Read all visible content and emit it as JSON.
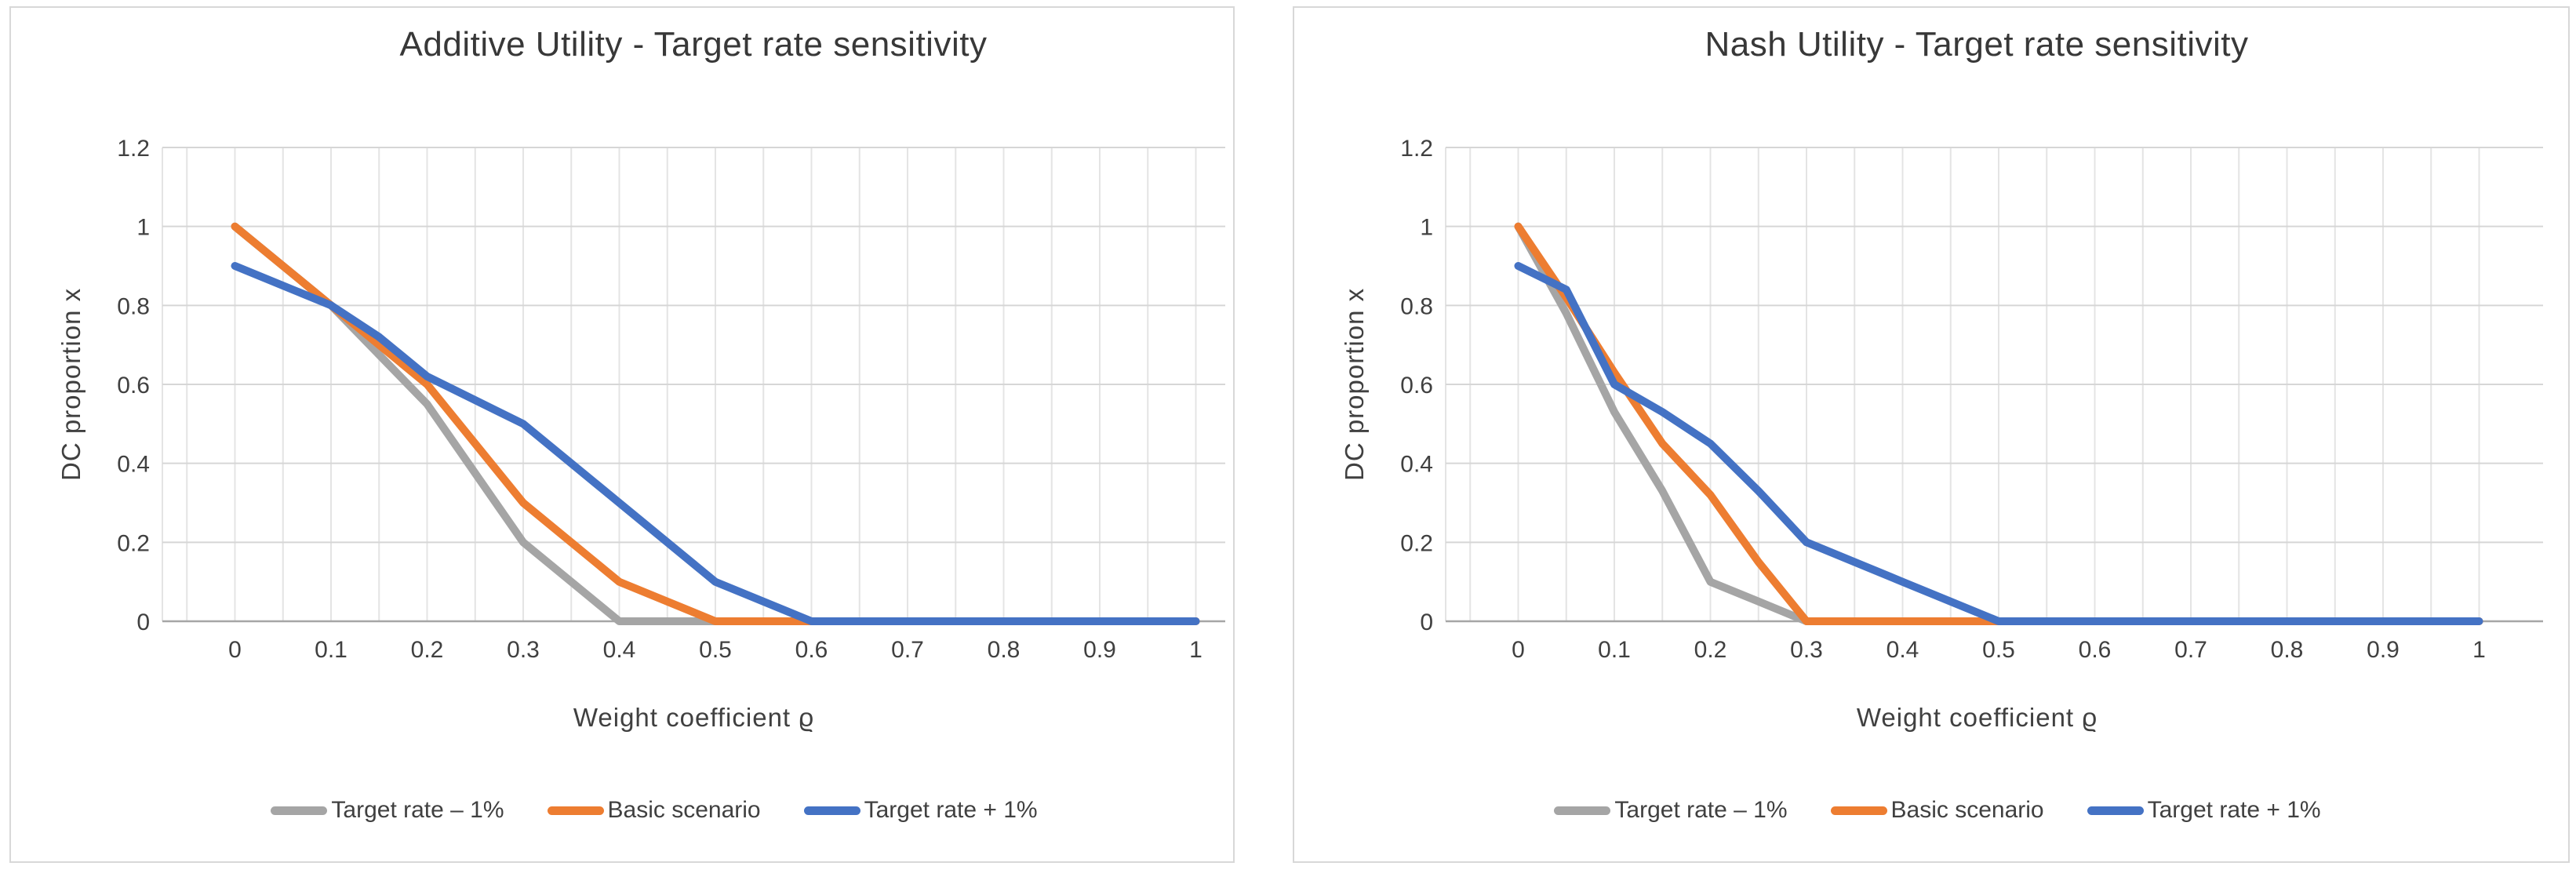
{
  "colors": {
    "blue": "#4472C4",
    "orange": "#ED7D31",
    "gray": "#A5A5A5",
    "grid_major": "#D6D6D6",
    "grid_minor": "#E4E4E4",
    "axis_line": "#A6A6A6",
    "text": "#404040"
  },
  "chart_data": [
    {
      "type": "line",
      "title": "Additive Utility - Target rate sensitivity",
      "xlabel": "Weight coefficient ϱ",
      "ylabel": "DC proportion x",
      "xlim": [
        0,
        1
      ],
      "ylim": [
        0,
        1.2
      ],
      "x_tick_labels": [
        "0",
        "0.1",
        "0.2",
        "0.3",
        "0.4",
        "0.5",
        "0.6",
        "0.7",
        "0.8",
        "0.9",
        "1"
      ],
      "y_tick_labels": [
        "0",
        "0.2",
        "0.4",
        "0.6",
        "0.8",
        "1",
        "1.2"
      ],
      "x_minor_step": 0.05,
      "grid": "on",
      "legend_position": "bottom",
      "series": [
        {
          "name": "Target rate – 1%",
          "color_key": "gray",
          "points": [
            [
              0,
              1
            ],
            [
              0.1,
              0.8
            ],
            [
              0.2,
              0.55
            ],
            [
              0.3,
              0.2
            ],
            [
              0.4,
              0
            ],
            [
              0.5,
              0
            ],
            [
              0.6,
              0
            ],
            [
              0.7,
              0
            ],
            [
              0.8,
              0
            ],
            [
              0.9,
              0
            ],
            [
              1,
              0
            ]
          ]
        },
        {
          "name": "Basic scenario",
          "color_key": "orange",
          "points": [
            [
              0,
              1
            ],
            [
              0.1,
              0.8
            ],
            [
              0.2,
              0.6
            ],
            [
              0.3,
              0.3
            ],
            [
              0.4,
              0.1
            ],
            [
              0.5,
              0
            ],
            [
              0.6,
              0
            ],
            [
              0.7,
              0
            ],
            [
              0.8,
              0
            ],
            [
              0.9,
              0
            ],
            [
              1,
              0
            ]
          ]
        },
        {
          "name": "Target rate + 1%",
          "color_key": "blue",
          "points": [
            [
              0,
              0.9
            ],
            [
              0.1,
              0.8
            ],
            [
              0.15,
              0.72
            ],
            [
              0.2,
              0.62
            ],
            [
              0.3,
              0.5
            ],
            [
              0.4,
              0.3
            ],
            [
              0.5,
              0.1
            ],
            [
              0.6,
              0
            ],
            [
              0.7,
              0
            ],
            [
              0.8,
              0
            ],
            [
              0.9,
              0
            ],
            [
              1,
              0
            ]
          ]
        }
      ]
    },
    {
      "type": "line",
      "title": "Nash Utility - Target rate sensitivity",
      "xlabel": "Weight coefficient ϱ",
      "ylabel": "DC proportion x",
      "xlim": [
        0,
        1
      ],
      "ylim": [
        0,
        1.2
      ],
      "x_tick_labels": [
        "0",
        "0.1",
        "0.2",
        "0.3",
        "0.4",
        "0.5",
        "0.6",
        "0.7",
        "0.8",
        "0.9",
        "1"
      ],
      "y_tick_labels": [
        "0",
        "0.2",
        "0.4",
        "0.6",
        "0.8",
        "1",
        "1.2"
      ],
      "x_minor_step": 0.05,
      "grid": "on",
      "legend_position": "bottom",
      "series": [
        {
          "name": "Target rate – 1%",
          "color_key": "gray",
          "points": [
            [
              0,
              1
            ],
            [
              0.05,
              0.78
            ],
            [
              0.1,
              0.53
            ],
            [
              0.15,
              0.33
            ],
            [
              0.2,
              0.1
            ],
            [
              0.25,
              0.05
            ],
            [
              0.3,
              0
            ],
            [
              0.4,
              0
            ],
            [
              0.5,
              0
            ],
            [
              0.6,
              0
            ],
            [
              0.7,
              0
            ],
            [
              0.8,
              0
            ],
            [
              0.9,
              0
            ],
            [
              1,
              0
            ]
          ]
        },
        {
          "name": "Basic scenario",
          "color_key": "orange",
          "points": [
            [
              0,
              1
            ],
            [
              0.05,
              0.82
            ],
            [
              0.1,
              0.63
            ],
            [
              0.15,
              0.45
            ],
            [
              0.2,
              0.32
            ],
            [
              0.25,
              0.15
            ],
            [
              0.3,
              0
            ],
            [
              0.4,
              0
            ],
            [
              0.5,
              0
            ],
            [
              0.6,
              0
            ],
            [
              0.7,
              0
            ],
            [
              0.8,
              0
            ],
            [
              0.9,
              0
            ],
            [
              1,
              0
            ]
          ]
        },
        {
          "name": "Target rate + 1%",
          "color_key": "blue",
          "points": [
            [
              0,
              0.9
            ],
            [
              0.05,
              0.84
            ],
            [
              0.1,
              0.6
            ],
            [
              0.15,
              0.53
            ],
            [
              0.2,
              0.45
            ],
            [
              0.25,
              0.33
            ],
            [
              0.3,
              0.2
            ],
            [
              0.4,
              0.1
            ],
            [
              0.5,
              0
            ],
            [
              0.6,
              0
            ],
            [
              0.7,
              0
            ],
            [
              0.8,
              0
            ],
            [
              0.9,
              0
            ],
            [
              1,
              0
            ]
          ]
        }
      ]
    }
  ]
}
